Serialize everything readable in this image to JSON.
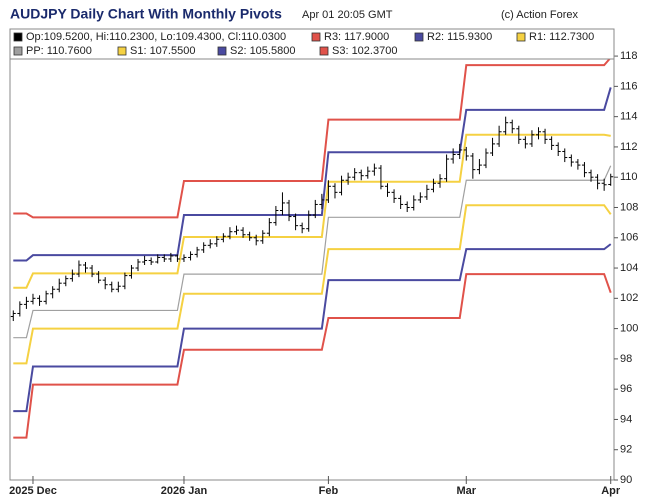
{
  "chart_data": {
    "type": "ohlc",
    "title": "AUDJPY Daily Chart With Monthly Pivots",
    "timestamp": "Apr 01 20:05 GMT",
    "credit": "(c) Action Forex",
    "price_name": "Op:109.5200, Hi:110.2300, Lo:109.4300, Cl:110.0300",
    "price_color": "#000000",
    "ohlc": [
      [
        100.8,
        101.2,
        100.5,
        101.0
      ],
      [
        101.0,
        101.8,
        100.8,
        101.6
      ],
      [
        101.6,
        102.1,
        101.3,
        101.8
      ],
      [
        101.8,
        102.3,
        101.6,
        102.0
      ],
      [
        102.0,
        102.2,
        101.5,
        101.8
      ],
      [
        101.8,
        102.5,
        101.6,
        102.3
      ],
      [
        102.3,
        102.8,
        102.0,
        102.6
      ],
      [
        102.6,
        103.3,
        102.4,
        103.0
      ],
      [
        103.0,
        103.5,
        102.8,
        103.3
      ],
      [
        103.3,
        103.9,
        103.1,
        103.6
      ],
      [
        103.6,
        104.5,
        103.4,
        104.2
      ],
      [
        104.2,
        104.4,
        103.7,
        104.0
      ],
      [
        104.0,
        104.2,
        103.4,
        103.6
      ],
      [
        103.6,
        103.8,
        103.0,
        103.2
      ],
      [
        103.2,
        103.4,
        102.6,
        102.9
      ],
      [
        102.9,
        103.1,
        102.4,
        102.6
      ],
      [
        102.6,
        103.1,
        102.4,
        102.8
      ],
      [
        102.8,
        103.7,
        102.6,
        103.5
      ],
      [
        103.5,
        104.2,
        103.3,
        104.0
      ],
      [
        104.0,
        104.6,
        103.8,
        104.4
      ],
      [
        104.4,
        104.8,
        104.2,
        104.5
      ],
      [
        104.5,
        104.7,
        104.2,
        104.4
      ],
      [
        104.4,
        104.9,
        104.3,
        104.7
      ],
      [
        104.7,
        104.9,
        104.4,
        104.6
      ],
      [
        104.6,
        105.0,
        104.4,
        104.8
      ],
      [
        104.8,
        104.9,
        104.4,
        104.6
      ],
      [
        104.6,
        104.9,
        104.4,
        104.7
      ],
      [
        104.7,
        105.1,
        104.5,
        104.9
      ],
      [
        104.9,
        105.4,
        104.7,
        105.2
      ],
      [
        105.2,
        105.7,
        105.0,
        105.5
      ],
      [
        105.5,
        105.9,
        105.3,
        105.6
      ],
      [
        105.6,
        106.1,
        105.4,
        105.9
      ],
      [
        105.9,
        106.3,
        105.7,
        106.1
      ],
      [
        106.1,
        106.7,
        105.9,
        106.4
      ],
      [
        106.4,
        106.8,
        106.2,
        106.5
      ],
      [
        106.5,
        106.7,
        106.0,
        106.2
      ],
      [
        106.2,
        106.4,
        105.8,
        106.0
      ],
      [
        106.0,
        106.2,
        105.5,
        105.8
      ],
      [
        105.8,
        106.5,
        105.6,
        106.3
      ],
      [
        106.3,
        107.3,
        106.1,
        107.0
      ],
      [
        107.0,
        108.1,
        106.8,
        107.8
      ],
      [
        107.8,
        109.0,
        107.5,
        108.3
      ],
      [
        108.3,
        108.5,
        107.1,
        107.4
      ],
      [
        107.4,
        107.6,
        106.5,
        106.8
      ],
      [
        106.8,
        107.0,
        106.3,
        106.6
      ],
      [
        106.6,
        107.8,
        106.4,
        107.5
      ],
      [
        107.5,
        108.5,
        107.3,
        108.2
      ],
      [
        108.2,
        108.9,
        107.9,
        108.5
      ],
      [
        108.5,
        109.8,
        108.3,
        109.4
      ],
      [
        109.4,
        109.6,
        108.6,
        109.0
      ],
      [
        109.0,
        110.1,
        108.8,
        109.8
      ],
      [
        109.8,
        110.3,
        109.5,
        110.0
      ],
      [
        110.0,
        110.6,
        109.8,
        110.3
      ],
      [
        110.3,
        110.5,
        109.8,
        110.1
      ],
      [
        110.1,
        110.7,
        109.9,
        110.4
      ],
      [
        110.4,
        110.9,
        110.1,
        110.6
      ],
      [
        110.6,
        110.8,
        109.2,
        109.4
      ],
      [
        109.4,
        109.6,
        108.7,
        109.0
      ],
      [
        109.0,
        109.2,
        108.3,
        108.6
      ],
      [
        108.6,
        108.8,
        107.9,
        108.2
      ],
      [
        108.2,
        108.4,
        107.7,
        108.0
      ],
      [
        108.0,
        108.8,
        107.8,
        108.5
      ],
      [
        108.5,
        109.0,
        108.3,
        108.7
      ],
      [
        108.7,
        109.5,
        108.5,
        109.2
      ],
      [
        109.2,
        109.9,
        109.0,
        109.6
      ],
      [
        109.6,
        110.2,
        109.3,
        109.9
      ],
      [
        109.9,
        111.5,
        109.7,
        111.2
      ],
      [
        111.2,
        111.9,
        110.9,
        111.5
      ],
      [
        111.5,
        112.2,
        111.2,
        111.8
      ],
      [
        111.8,
        112.0,
        111.1,
        111.4
      ],
      [
        111.4,
        111.6,
        109.9,
        110.5
      ],
      [
        110.5,
        111.2,
        110.2,
        110.8
      ],
      [
        110.8,
        111.9,
        110.6,
        111.6
      ],
      [
        111.6,
        112.6,
        111.4,
        112.2
      ],
      [
        112.2,
        113.4,
        112.0,
        113.0
      ],
      [
        113.0,
        114.0,
        112.8,
        113.6
      ],
      [
        113.6,
        113.8,
        112.9,
        113.2
      ],
      [
        113.2,
        113.4,
        112.2,
        112.5
      ],
      [
        112.5,
        112.7,
        111.9,
        112.2
      ],
      [
        112.2,
        113.1,
        112.0,
        112.8
      ],
      [
        112.8,
        113.3,
        112.5,
        113.0
      ],
      [
        113.0,
        113.2,
        112.2,
        112.5
      ],
      [
        112.5,
        112.7,
        111.8,
        112.1
      ],
      [
        112.1,
        112.3,
        111.4,
        111.7
      ],
      [
        111.7,
        111.9,
        111.0,
        111.3
      ],
      [
        111.3,
        111.5,
        110.7,
        111.0
      ],
      [
        111.0,
        111.2,
        110.5,
        110.8
      ],
      [
        110.8,
        111.0,
        110.0,
        110.3
      ],
      [
        110.3,
        110.5,
        109.7,
        110.0
      ],
      [
        110.0,
        110.2,
        109.2,
        109.6
      ],
      [
        109.6,
        109.9,
        109.1,
        109.5
      ],
      [
        109.52,
        110.23,
        109.43,
        110.03
      ]
    ],
    "series": [
      {
        "name": "R3: 117.9000",
        "color": "#e0524a",
        "x": [
          0,
          2,
          3,
          25,
          26,
          47,
          48,
          68,
          69,
          90,
          91
        ],
        "values": [
          107.6,
          107.6,
          107.35,
          107.35,
          109.75,
          109.75,
          113.8,
          113.8,
          117.4,
          117.4,
          117.9
        ]
      },
      {
        "name": "R2: 115.9300",
        "color": "#4a4aa0",
        "x": [
          0,
          2,
          3,
          25,
          26,
          47,
          48,
          68,
          69,
          90,
          91
        ],
        "values": [
          104.5,
          104.5,
          104.85,
          104.85,
          107.5,
          107.5,
          111.65,
          111.65,
          114.45,
          114.45,
          115.93
        ]
      },
      {
        "name": "R1: 112.7300",
        "color": "#f5d142",
        "x": [
          0,
          2,
          3,
          25,
          26,
          47,
          48,
          68,
          69,
          90,
          91
        ],
        "values": [
          102.7,
          102.7,
          103.65,
          103.65,
          106.05,
          106.05,
          109.7,
          109.7,
          112.8,
          112.8,
          112.73
        ]
      },
      {
        "name": "PP: 110.7600",
        "color": "#a0a0a0",
        "x": [
          0,
          2,
          3,
          25,
          26,
          47,
          48,
          68,
          69,
          90,
          91
        ],
        "values": [
          99.4,
          99.4,
          101.2,
          101.2,
          103.6,
          103.6,
          107.35,
          107.35,
          109.8,
          109.8,
          110.76
        ]
      },
      {
        "name": "S1: 107.5500",
        "color": "#f5d142",
        "x": [
          0,
          2,
          3,
          25,
          26,
          47,
          48,
          68,
          69,
          90,
          91
        ],
        "values": [
          97.7,
          97.7,
          100.0,
          100.0,
          102.3,
          102.3,
          105.25,
          105.25,
          108.15,
          108.15,
          107.55
        ]
      },
      {
        "name": "S2: 105.5800",
        "color": "#4a4aa0",
        "x": [
          0,
          2,
          3,
          25,
          26,
          47,
          48,
          68,
          69,
          90,
          91
        ],
        "values": [
          94.55,
          94.55,
          97.5,
          97.5,
          100.0,
          100.0,
          103.2,
          103.2,
          105.25,
          105.25,
          105.58
        ]
      },
      {
        "name": "S3: 102.3700",
        "color": "#e0524a",
        "x": [
          0,
          2,
          3,
          25,
          26,
          47,
          48,
          68,
          69,
          90,
          91
        ],
        "values": [
          92.8,
          92.8,
          96.3,
          96.3,
          98.6,
          98.6,
          100.7,
          100.7,
          103.6,
          103.6,
          102.37
        ]
      }
    ],
    "xlim": [
      -0.5,
      91.5
    ],
    "xticks": [
      {
        "value": 3,
        "label": "2025 Dec"
      },
      {
        "value": 26,
        "label": "2026 Jan"
      },
      {
        "value": 48,
        "label": "Feb"
      },
      {
        "value": 69,
        "label": "Mar"
      },
      {
        "value": 91,
        "label": "Apr"
      }
    ],
    "ylim": [
      90,
      118.6
    ],
    "yticks": [
      90,
      92,
      94,
      96,
      98,
      100,
      102,
      104,
      106,
      108,
      110,
      112,
      114,
      116,
      118
    ],
    "y_axis_side": "right"
  }
}
